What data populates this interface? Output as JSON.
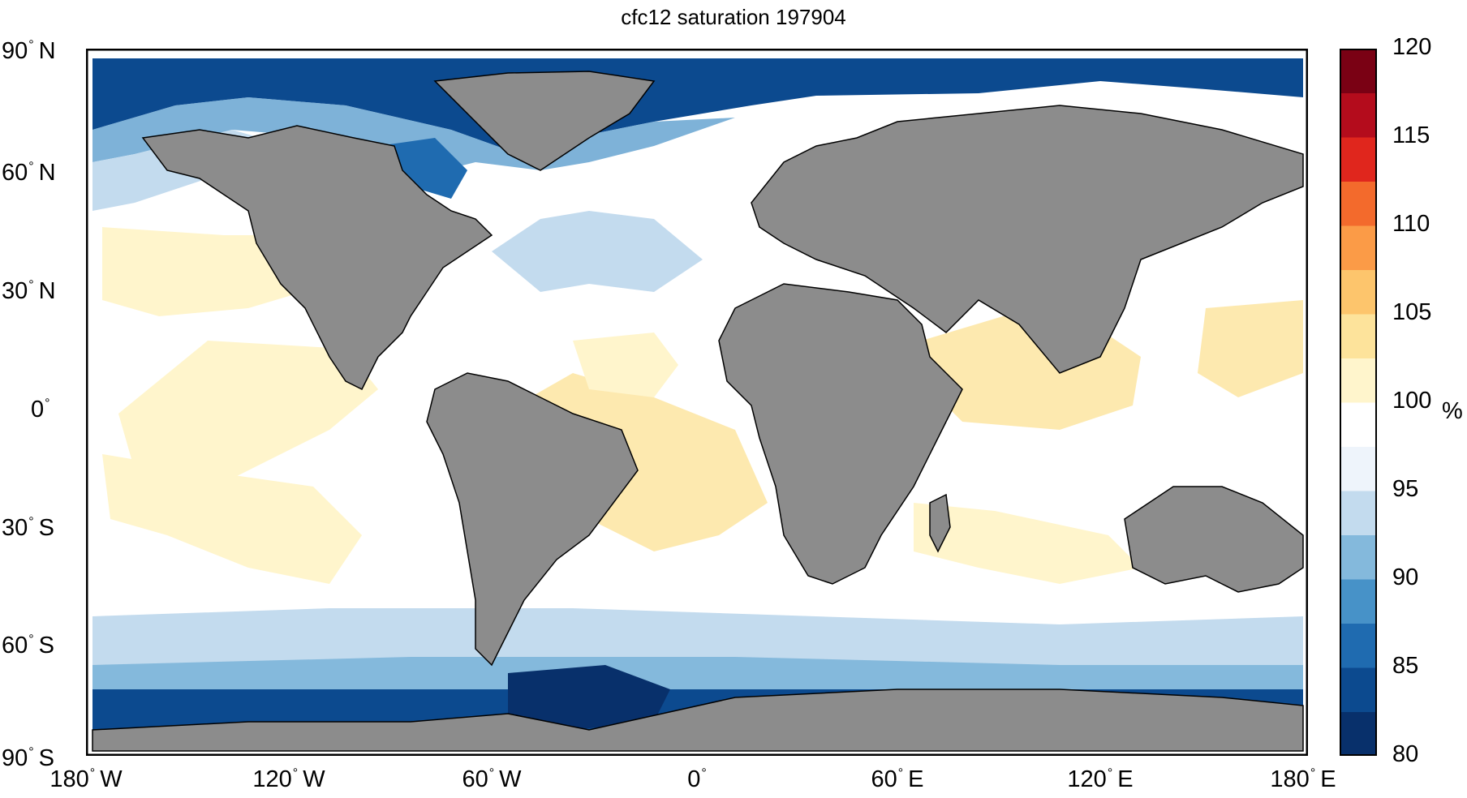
{
  "title": "cfc12 saturation 197904",
  "lat_ticks": [
    "90",
    "60",
    "30",
    "0",
    "30",
    "60",
    "90"
  ],
  "lat_hemis": [
    "N",
    "N",
    "N",
    "",
    "S",
    "S",
    "S"
  ],
  "lon_ticks": [
    "180",
    "120",
    "60",
    "0",
    "60",
    "120",
    "180"
  ],
  "lon_hemis": [
    "W",
    "W",
    "W",
    "",
    "E",
    "E",
    "E"
  ],
  "colorbar": {
    "min": 80,
    "max": 120,
    "ticks": [
      "120",
      "115",
      "110",
      "105",
      "100",
      "95",
      "90",
      "85",
      "80"
    ],
    "unit": "%",
    "colors": [
      "#08306b",
      "#0c4a8f",
      "#1f6bb0",
      "#4792c8",
      "#84b9dc",
      "#c3dbee",
      "#eef4fb",
      "#ffffff",
      "#fff5cc",
      "#fde39b",
      "#fdc56c",
      "#fb9b47",
      "#f36a2c",
      "#e0261d",
      "#b40c1c",
      "#7a0114"
    ]
  },
  "colors": {
    "land": "#8c8c8c",
    "ocean_base": "#ffffff",
    "frame": "#000000"
  }
}
